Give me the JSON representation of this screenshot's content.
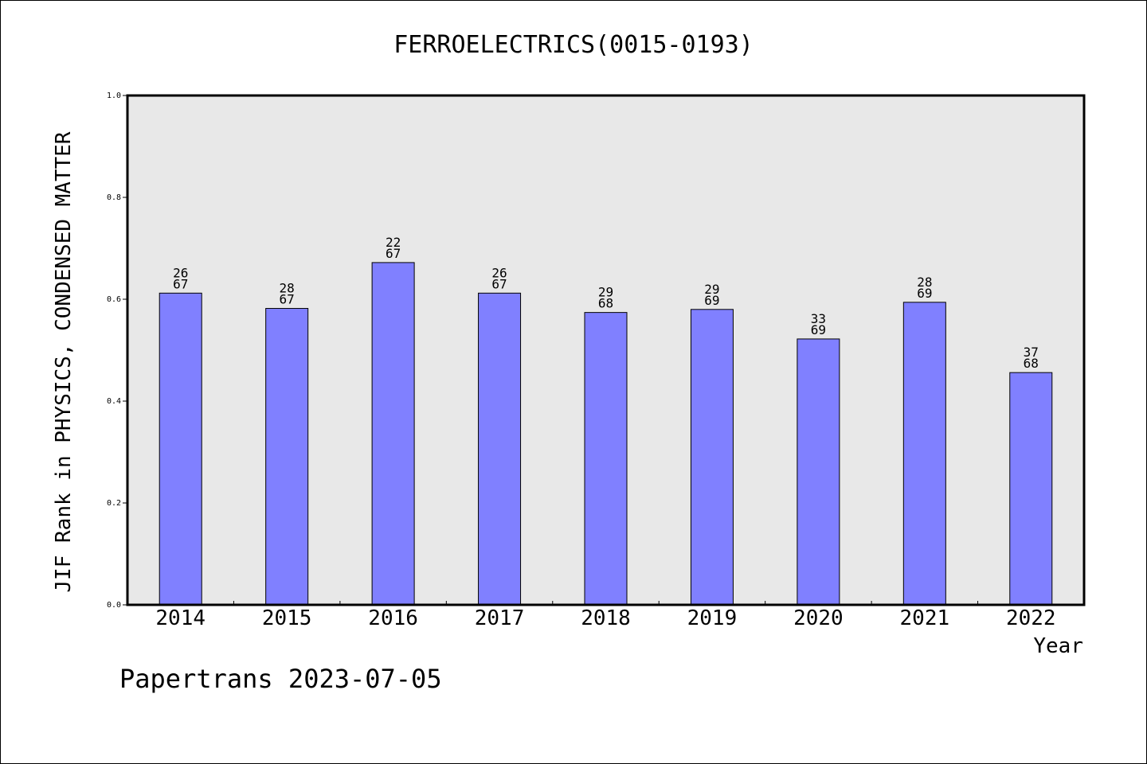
{
  "chart_data": {
    "type": "bar",
    "title": "FERROELECTRICS(0015-0193)",
    "xlabel": "Year",
    "ylabel": "JIF Rank in PHYSICS, CONDENSED MATTER",
    "ylim": [
      0.0,
      1.0
    ],
    "yticks": [
      "0.0",
      "0.2",
      "0.4",
      "0.6",
      "0.8",
      "1.0"
    ],
    "ytick_values": [
      0.0,
      0.2,
      0.4,
      0.6,
      0.8,
      1.0
    ],
    "grid": false,
    "legend": "none",
    "categories": [
      "2014",
      "2015",
      "2016",
      "2017",
      "2018",
      "2019",
      "2020",
      "2021",
      "2022"
    ],
    "values": [
      0.612,
      0.582,
      0.672,
      0.612,
      0.574,
      0.58,
      0.522,
      0.594,
      0.456
    ],
    "ranks": [
      "26",
      "28",
      "22",
      "26",
      "29",
      "29",
      "33",
      "28",
      "37"
    ],
    "totals": [
      "67",
      "67",
      "67",
      "67",
      "68",
      "69",
      "69",
      "69",
      "68"
    ],
    "colors": {
      "bar": "#8080ff",
      "plot_bg": "#e8e8e8",
      "axis": "#000000"
    }
  },
  "footer": {
    "credit": "Papertrans 2023-07-05"
  }
}
